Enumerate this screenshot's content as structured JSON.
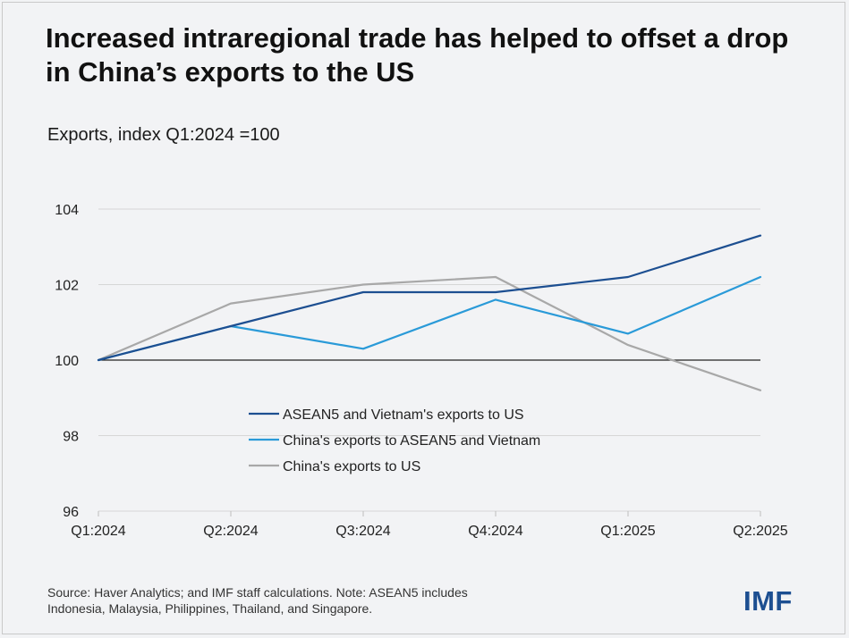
{
  "title": "Increased intraregional trade has helped to offset a drop in China’s exports to the US",
  "subtitle": "Exports, index Q1:2024 =100",
  "footnote": {
    "line1": "Source: Haver Analytics; and IMF staff calculations. Note: ASEAN5 includes",
    "line2": "Indonesia, Malaysia, Philippines, Thailand, and Singapore."
  },
  "logo_text": "IMF",
  "chart_data": {
    "type": "line",
    "categories": [
      "Q1:2024",
      "Q2:2024",
      "Q3:2024",
      "Q4:2024",
      "Q1:2025",
      "Q2:2025"
    ],
    "ylim": [
      96,
      104
    ],
    "yticks": [
      96,
      98,
      100,
      102,
      104
    ],
    "baseline": 100,
    "series": [
      {
        "name": "ASEAN5 and Vietnam's exports to US",
        "color": "#1d4f91",
        "values": [
          100,
          100.9,
          101.8,
          101.8,
          102.2,
          103.3
        ]
      },
      {
        "name": "China's exports to ASEAN5 and Vietnam",
        "color": "#2a9ad8",
        "values": [
          100,
          100.9,
          100.3,
          101.6,
          100.7,
          102.2
        ]
      },
      {
        "name": "China's exports to US",
        "color": "#a8a8a8",
        "values": [
          100,
          101.5,
          102.0,
          102.2,
          100.4,
          99.2
        ]
      }
    ],
    "legend_position": "center"
  }
}
